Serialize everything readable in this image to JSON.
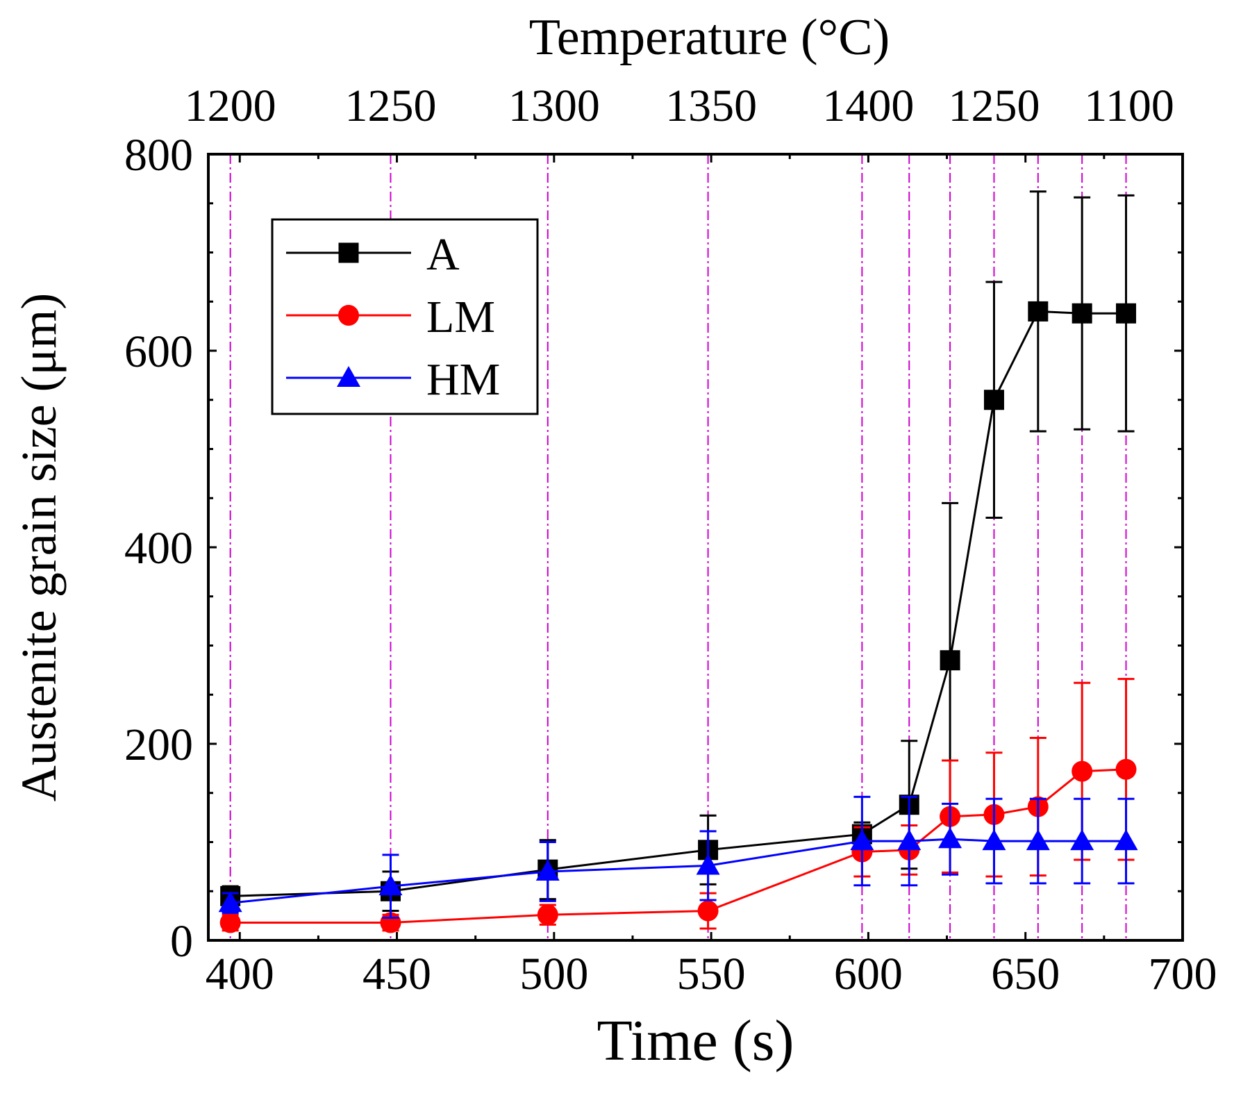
{
  "chart_data": {
    "type": "line",
    "title": "",
    "xlabel": "Time (s)",
    "ylabel": "Austenite grain size (μm)",
    "x2label": "Temperature (°C)",
    "xlim": [
      390,
      700
    ],
    "ylim": [
      0,
      800
    ],
    "xticks": [
      "400",
      "450",
      "500",
      "550",
      "600",
      "650",
      "700"
    ],
    "yticks": [
      "0",
      "200",
      "400",
      "600",
      "800"
    ],
    "x2ticks": [
      {
        "x": 397,
        "label": "1200"
      },
      {
        "x": 448,
        "label": "1250"
      },
      {
        "x": 500,
        "label": "1300"
      },
      {
        "x": 550,
        "label": "1350"
      },
      {
        "x": 600,
        "label": "1400"
      },
      {
        "x": 640,
        "label": "1250"
      },
      {
        "x": 683,
        "label": "1100"
      }
    ],
    "grid": false,
    "vlines": [
      397,
      448,
      498,
      549,
      598,
      613,
      626,
      640,
      654,
      668,
      682
    ],
    "legend_position": "top-left",
    "series": [
      {
        "name": "A",
        "color": "#000000",
        "marker": "square",
        "points": [
          {
            "x": 397,
            "y": 45,
            "err": 10
          },
          {
            "x": 448,
            "y": 50,
            "err": 20
          },
          {
            "x": 498,
            "y": 72,
            "err": 30
          },
          {
            "x": 549,
            "y": 92,
            "err": 35
          },
          {
            "x": 598,
            "y": 108,
            "err": 12
          },
          {
            "x": 613,
            "y": 138,
            "err": 65
          },
          {
            "x": 626,
            "y": 285,
            "err": 160
          },
          {
            "x": 640,
            "y": 550,
            "err": 120
          },
          {
            "x": 654,
            "y": 640,
            "err": 122
          },
          {
            "x": 668,
            "y": 638,
            "err": 118
          },
          {
            "x": 682,
            "y": 638,
            "err": 120
          }
        ]
      },
      {
        "name": "LM",
        "color": "#ff0000",
        "marker": "circle",
        "points": [
          {
            "x": 397,
            "y": 18,
            "err": 8
          },
          {
            "x": 448,
            "y": 18,
            "err": 8
          },
          {
            "x": 498,
            "y": 26,
            "err": 10
          },
          {
            "x": 549,
            "y": 30,
            "err": 18
          },
          {
            "x": 598,
            "y": 90,
            "err": 25
          },
          {
            "x": 613,
            "y": 92,
            "err": 25
          },
          {
            "x": 626,
            "y": 126,
            "err": 57
          },
          {
            "x": 640,
            "y": 128,
            "err": 63
          },
          {
            "x": 654,
            "y": 136,
            "err": 70
          },
          {
            "x": 668,
            "y": 172,
            "err": 90
          },
          {
            "x": 682,
            "y": 174,
            "err": 92
          }
        ]
      },
      {
        "name": "HM",
        "color": "#0000ff",
        "marker": "triangle",
        "points": [
          {
            "x": 397,
            "y": 38,
            "err": 10
          },
          {
            "x": 448,
            "y": 55,
            "err": 32
          },
          {
            "x": 498,
            "y": 70,
            "err": 30
          },
          {
            "x": 549,
            "y": 76,
            "err": 35
          },
          {
            "x": 598,
            "y": 101,
            "err": 45
          },
          {
            "x": 613,
            "y": 101,
            "err": 45
          },
          {
            "x": 626,
            "y": 103,
            "err": 36
          },
          {
            "x": 640,
            "y": 101,
            "err": 43
          },
          {
            "x": 654,
            "y": 101,
            "err": 43
          },
          {
            "x": 668,
            "y": 101,
            "err": 43
          },
          {
            "x": 682,
            "y": 101,
            "err": 43
          }
        ]
      }
    ]
  }
}
